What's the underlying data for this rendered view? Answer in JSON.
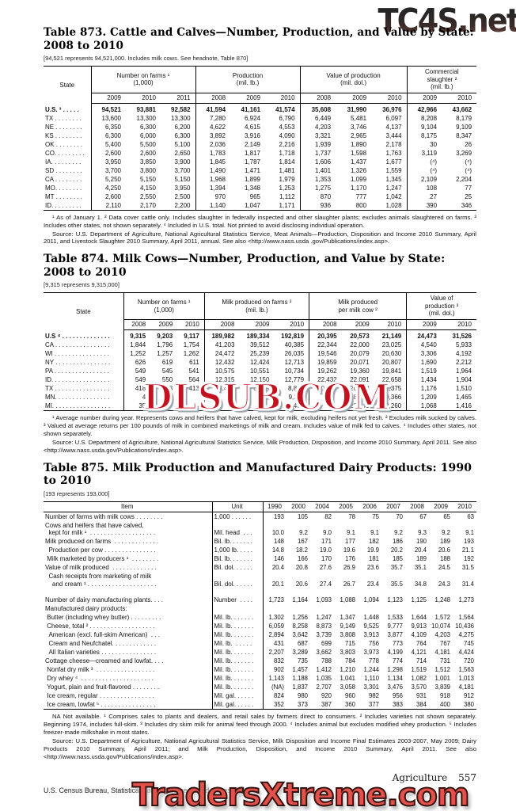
{
  "watermarks": {
    "top": "TC4S.net",
    "middle": "DLSUB.COM",
    "bottom": "TradersXtreme.com"
  },
  "t873": {
    "title": "Table 873. Cattle and Calves—Number, Production, and Value by State:\n2008 to 2010",
    "headnote": "[94,521 represents 94,521,000. Includes milk cows. See headnote, Table 870]",
    "state_col": "State",
    "groups": [
      {
        "label": "Number on farms ¹\n(1,000)",
        "years": [
          "2009",
          "2010",
          "2011"
        ]
      },
      {
        "label": "Production\n(mil. lb.)",
        "years": [
          "2008",
          "2009",
          "2010"
        ]
      },
      {
        "label": "Value of production\n(mil. dol.)",
        "years": [
          "2008",
          "2009",
          "2010"
        ]
      },
      {
        "label": "Commercial\nslaughter ²\n(mil. lb.)",
        "years": [
          "2009",
          "2010"
        ]
      }
    ],
    "rows": [
      [
        "U.S. ³ . . . . .",
        "94,521",
        "93,881",
        "92,582",
        "41,594",
        "41,161",
        "41,574",
        "35,608",
        "31,990",
        "36,976",
        "42,966",
        "43,662"
      ],
      [
        "TX . . . . . . . .",
        "13,600",
        "13,300",
        "13,300",
        "7,280",
        "6,924",
        "6,790",
        "6,449",
        "5,481",
        "6,097",
        "8,208",
        "8,179"
      ],
      [
        "NE . . . . . . . .",
        "6,350",
        "6,300",
        "6,200",
        "4,622",
        "4,615",
        "4,553",
        "4,203",
        "3,746",
        "4,137",
        "9,104",
        "9,109"
      ],
      [
        "KS . . . . . . . .",
        "6,300",
        "6,000",
        "6,300",
        "3,892",
        "3,916",
        "4,090",
        "3,321",
        "2,965",
        "3,444",
        "8,175",
        "8,347"
      ],
      [
        "OK . . . . . . . .",
        "5,400",
        "5,500",
        "5,100",
        "2,036",
        "2,149",
        "2,216",
        "1,939",
        "1,890",
        "2,178",
        "30",
        "26"
      ],
      [
        "CO. . . . . . . . .",
        "2,600",
        "2,600",
        "2,650",
        "1,783",
        "1,817",
        "1,718",
        "1,737",
        "1,598",
        "1,763",
        "3,119",
        "3,269"
      ],
      [
        "IA. . . . . . . . .",
        "3,950",
        "3,850",
        "3,900",
        "1,845",
        "1,787",
        "1,814",
        "1,606",
        "1,437",
        "1,677",
        "(⁴)",
        "(⁴)"
      ],
      [
        "SD . . . . . . . .",
        "3,700",
        "3,800",
        "3,700",
        "1,490",
        "1,471",
        "1,481",
        "1,401",
        "1,326",
        "1,559",
        "(⁴)",
        "(⁴)"
      ],
      [
        "CA . . . . . . . .",
        "5,250",
        "5,150",
        "5,150",
        "1,968",
        "1,899",
        "1,979",
        "1,353",
        "1,099",
        "1,345",
        "2,109",
        "2,204"
      ],
      [
        "MO. . . . . . . .",
        "4,250",
        "4,150",
        "3,950",
        "1,394",
        "1,348",
        "1,253",
        "1,275",
        "1,170",
        "1,247",
        "108",
        "77"
      ],
      [
        "MT . . . . . . . .",
        "2,600",
        "2,550",
        "2,500",
        "970",
        "965",
        "1,112",
        "870",
        "777",
        "1,042",
        "27",
        "25"
      ],
      [
        "ID. . . . . . . . .",
        "2,110",
        "2,170",
        "2,200",
        "1,140",
        "1,047",
        "1,171",
        "936",
        "800",
        "1,028",
        "390",
        "346"
      ]
    ],
    "footnotes": "¹ As of January 1. ² Data cover cattle only. Includes slaughter in federally inspected and other slaughter plants; excludes animals slaughtered on farms. ³ Includes other states, not shown separately. ⁴ Included in U.S. total. Not printed to avoid disclosing individual operation.",
    "source": "Source: U.S. Department of Agriculture, National Agricultural Statistics Service, Meat Animals—Production, Disposition and Income 2010 Summary, April 2011, and Livestock Slaughter 2010 Summary, April 2011, annual. See also <http://www.nass.usda .gov/Publications/index.asp>."
  },
  "t874": {
    "title": "Table 874. Milk Cows—Number, Production, and Value by State: 2008 to 2010",
    "headnote": "[9,315 represents 9,315,000]",
    "state_col": "State",
    "groups": [
      {
        "label": "Number on farms ¹\n(1,000)",
        "years": [
          "2008",
          "2009",
          "2010"
        ]
      },
      {
        "label": "Milk produced on farms ²\n(mil. lb.)",
        "years": [
          "2008",
          "2009",
          "2010"
        ]
      },
      {
        "label": "Milk produced\nper milk cow ²",
        "years": [
          "2008",
          "2009",
          "2010"
        ]
      },
      {
        "label": "Value of\nproduction ³\n(mil. dol.)",
        "years": [
          "2009",
          "2010"
        ]
      }
    ],
    "rows": [
      [
        "U.S ⁴ . . . . . . . . . . . . . .",
        "9,315",
        "9,203",
        "9,117",
        "189,982",
        "189,334",
        "192,819",
        "20,395",
        "20,573",
        "21,149",
        "24,473",
        "31,526"
      ],
      [
        "CA . . . . . . . . . . . . . . . .",
        "1,844",
        "1,796",
        "1,754",
        "41,203",
        "39,512",
        "40,385",
        "22,344",
        "22,000",
        "23,025",
        "4,540",
        "5,933"
      ],
      [
        "WI . . . . . . . . . . . . . . . .",
        "1,252",
        "1,257",
        "1,262",
        "24,472",
        "25,239",
        "26,035",
        "19,546",
        "20,079",
        "20,630",
        "3,306",
        "4,192"
      ],
      [
        "NY . . . . . . . . . . . . . . . .",
        "626",
        "619",
        "611",
        "12,432",
        "12,424",
        "12,713",
        "19,859",
        "20,071",
        "20,807",
        "1,690",
        "2,212"
      ],
      [
        "PA . . . . . . . . . . . . . . . .",
        "549",
        "545",
        "541",
        "10,575",
        "10,551",
        "10,734",
        "19,262",
        "19,360",
        "19,841",
        "1,519",
        "1,964"
      ],
      [
        "ID. . . . . . . . . . . . . . . . .",
        "549",
        "550",
        "564",
        "12,315",
        "12,150",
        "12,779",
        "22,432",
        "22,091",
        "22,658",
        "1,434",
        "1,904"
      ],
      [
        "TX . . . . . . . . . . . . . . . .",
        "418",
        "423",
        "413",
        "8,416",
        "8,840",
        "8,828",
        "20,134",
        "20,898",
        "21,375",
        "1,176",
        "1,510"
      ],
      [
        "MN. . . . . . . . . . . . . . . .",
        "4",
        "",
        "",
        "",
        "",
        "9,119",
        "",
        "18,930",
        "19,366",
        "1,209",
        "1,465"
      ],
      [
        "MI. . . . . . . . . . . . . . . . .",
        "35",
        "",
        "",
        "",
        "",
        "8,468",
        "",
        "22,645",
        "23,260",
        "1,068",
        "1,416"
      ]
    ],
    "footnotes": "¹ Average number during year. Represents cows and heifers that have calved, kept for milk, excluding heifers not yet fresh. ² Excludes milk sucked by calves. ³ Valued at average returns per 100 pounds of milk in combined marketings of milk and cream. Includes value of milk fed to calves. ⁴ Includes other states, not shown separately.",
    "source": "Source: U.S. Department of Agriculture, National Agricultural Statistics Service, Milk Production, Disposition, and Income 2010 Summary, April 2011. See also <http://www.nass.usda.gov/Publications/index.asp>."
  },
  "t875": {
    "title": "Table 875. Milk Production and Manufactured Dairy Products: 1990 to 2010",
    "headnote": "[193 represents 193,000]",
    "item_col": "Item",
    "unit_col": "Unit",
    "years": [
      "1990",
      "2000",
      "2004",
      "2005",
      "2006",
      "2007",
      "2008",
      "2009",
      "2010"
    ],
    "rows": [
      [
        "Number of farms with milk cows . . . . . . . .",
        "1,000 . . . . . .",
        "193",
        "105",
        "82",
        "78",
        "75",
        "70",
        "67",
        "65",
        "63"
      ],
      [
        "Cows and heifers that have calved,\n  kept for milk ¹  . . . . . . . . . . . . . . . . . . .",
        "Mil. head  . . .",
        "10.0",
        "9.2",
        "9.0",
        "9.1",
        "9.1",
        "9.2",
        "9.3",
        "9.2",
        "9.1"
      ],
      [
        "Milk produced on farms  . . . . . . . . . . . . .",
        "Bil. lb. . . . . . .",
        "148",
        "167",
        "171",
        "177",
        "182",
        "186",
        "190",
        "189",
        "193"
      ],
      [
        "  Production per cow . . . . . . . . . . . . . . .",
        "1,000 lb. . . . .",
        "14.8",
        "18.2",
        "19.0",
        "19.6",
        "19.9",
        "20.2",
        "20.4",
        "20.6",
        "21.1"
      ],
      [
        " Milk marketed by producers ¹  . . . . . . . .",
        "Bil. lb. . . . . . .",
        "146",
        "166",
        "170",
        "176",
        "181",
        "185",
        "189",
        "188",
        "192"
      ],
      [
        "Value of milk produced  . . . . . . . . . . . . .",
        "Bil. dol. . . . . .",
        "20.4",
        "20.8",
        "27.6",
        "26.9",
        "23.6",
        "35.7",
        "35.1",
        "24.5",
        "31.5"
      ],
      [
        "  Cash receipts from marketing of milk\n    and cream ¹ . . . . . . . . . . . . . . . . . . . .",
        "Bil. dol. . . . . .",
        "20.1",
        "20.6",
        "27.4",
        "26.7",
        "23.4",
        "35.5",
        "34.8",
        "24.3",
        "31.4"
      ],
      [
        "",
        "",
        "",
        "",
        "",
        "",
        "",
        "",
        "",
        "",
        ""
      ],
      [
        "Number of dairy manufacturing plants. . . .",
        "Number  . . . .",
        "1,723",
        "1,164",
        "1,093",
        "1,088",
        "1,094",
        "1,123",
        "1,125",
        "1,248",
        "1,273"
      ],
      [
        "Manufactured dairy products:",
        "",
        "",
        "",
        "",
        "",
        "",
        "",
        "",
        "",
        ""
      ],
      [
        " Butter (including whey butter) . . . . . . . . .",
        "Mil. lb. . . . . . .",
        "1,302",
        "1,256",
        "1,247",
        "1,347",
        "1,448",
        "1,533",
        "1,644",
        "1,572",
        "1,564"
      ],
      [
        " Cheese, total ² . . . . . . . . . . . . . . . . . . .",
        "Mil. lb. . . . . . .",
        "6,059",
        "8,258",
        "8,873",
        "9,149",
        "9,525",
        "9,777",
        "9,913",
        "10,074",
        "10,436"
      ],
      [
        "  American (excl. full-skim American)  . . .",
        "Mil. lb. . . . . . .",
        "2,894",
        "3,642",
        "3,739",
        "3,808",
        "3,913",
        "3,877",
        "4,109",
        "4,203",
        "4,275"
      ],
      [
        "  Cream and Neufchatel. . . . . . . . . . . . .",
        "Mil. lb.  . . . . .",
        "431",
        "687",
        "699",
        "715",
        "756",
        "773",
        "764",
        "767",
        "745"
      ],
      [
        "  All Italian varieties . . . . . . . . . . . . . . . .",
        "Mil. lb. . . . . . .",
        "2,207",
        "3,289",
        "3,662",
        "3,803",
        "3,973",
        "4,199",
        "4,121",
        "4,181",
        "4,424"
      ],
      [
        "Cottage cheese—creamed and lowfat. . . .",
        "Mil. lb. . . . . . .",
        "832",
        "735",
        "788",
        "784",
        "778",
        "774",
        "714",
        "731",
        "720"
      ],
      [
        " Nonfat dry milk ³  . . . . . . . . . . . . . . . . .",
        "Mil. lb. . . . . . .",
        "902",
        "1,457",
        "1,412",
        "1,210",
        "1,244",
        "1,298",
        "1,519",
        "1,512",
        "1,563"
      ],
      [
        " Dry whey ⁴  . . . . . . . . . . . . . . . . . . . . .",
        "Mil. lb. . . . . . .",
        "1,143",
        "1,188",
        "1,035",
        "1,041",
        "1,110",
        "1,134",
        "1,082",
        "1,001",
        "1,013"
      ],
      [
        " Yogurt, plain and fruit-flavored . . . . . . . .",
        "Mil. lb. . . . . . .",
        "(NA)",
        "1,837",
        "2,707",
        "3,058",
        "3,301",
        "3,476",
        "3,570",
        "3,839",
        "4,181"
      ],
      [
        " Ice cream, regular . . . . . . . . . . . . . . . .",
        "Mil. gal. . . . . .",
        "824",
        "980",
        "920",
        "960",
        "982",
        "956",
        "931",
        "918",
        "912"
      ],
      [
        " Ice cream, lowfat ⁵ . . . . . . . . . . . . . . . .",
        "Mil. gal. . . . . .",
        "352",
        "373",
        "387",
        "360",
        "377",
        "383",
        "384",
        "400",
        "380"
      ]
    ],
    "footnotes": "NA Not available. ¹ Comprises sales to plants and dealers, and retail sales by farmers direct to consumers. ² Includes varieties not shown separately. Beginning 1974, includes full-skim. ³ Includes dry skim milk for animal feed through 2000. ⁴ Includes animal but excludes modified whey production. ⁵ Includes freezer-made milkshake in most states.",
    "source": "Source: U.S. Department of Agriculture, National Agricultural Statistics Service, Milk Disposition and Income Final Estimates 2003-2007, May 2009; Dairy Products 2010 Summary, April 2011; and Milk Production, Disposition, and Income 2010 Summary, April 2011. See also <http://www.nass.usda.gov/Publications/index.asp>."
  },
  "footer": {
    "section": "Agriculture",
    "page": "557",
    "credit": "U.S. Census Bureau, Statistical Abstract of the United States: 2012"
  }
}
